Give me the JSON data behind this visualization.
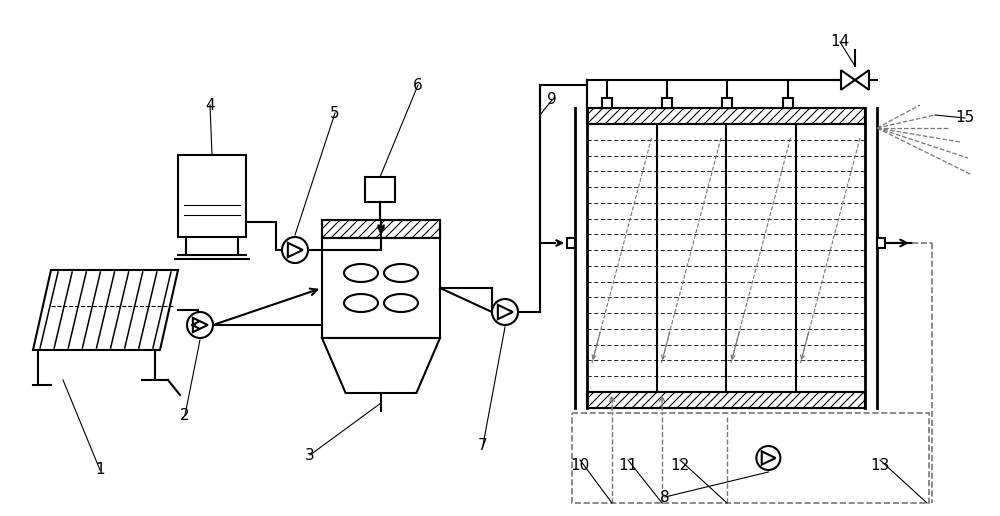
{
  "bg_color": "#ffffff",
  "line_color": "#000000",
  "gray_color": "#777777",
  "lw": 1.5,
  "lw_thick": 2.0,
  "lw_thin": 0.8,
  "fontsize": 11
}
